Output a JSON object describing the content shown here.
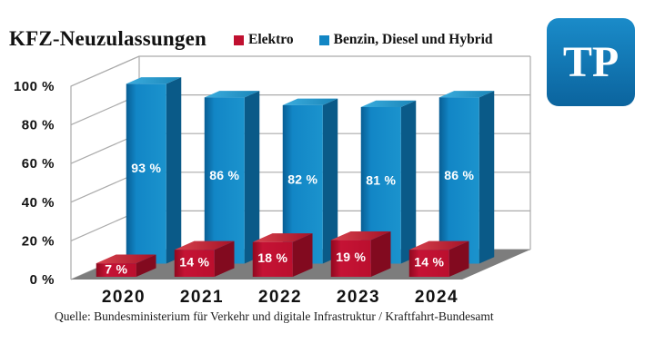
{
  "header": {
    "title": "KFZ-Neuzulassungen",
    "logo_text": "TP",
    "logo_color_top": "#1a8bc9",
    "logo_color_bottom": "#0b649e"
  },
  "source": "Quelle: Bundesministerium für Verkehr und digitale Infrastruktur / Kraftfahrt-Bundesamt",
  "chart_data": {
    "type": "bar",
    "style": "3d-column",
    "title": "KFZ-Neuzulassungen",
    "categories": [
      "2020",
      "2021",
      "2022",
      "2023",
      "2024"
    ],
    "series": [
      {
        "name": "Elektro",
        "color": "#c01030",
        "values": [
          7,
          14,
          18,
          19,
          14
        ],
        "colors": {
          "front_start": "#90081f",
          "front_mid": "#c51335",
          "front_end": "#bb0f2e",
          "top_start": "#d8434e",
          "top_end": "#a51126",
          "side": "#820a1f"
        }
      },
      {
        "name": "Benzin, Diesel und Hybrid",
        "color": "#1286c4",
        "values": [
          93,
          86,
          82,
          81,
          86
        ],
        "colors": {
          "front_start": "#085e94",
          "front_mid": "#1286c6",
          "front_end": "#1b93cd",
          "top_start": "#3badde",
          "top_end": "#1a85b8",
          "side": "#0a5a88"
        }
      }
    ],
    "value_suffix": " %",
    "yticks": [
      {
        "label": "0 %",
        "pct": 0
      },
      {
        "label": "20 %",
        "pct": 20
      },
      {
        "label": "40 %",
        "pct": 40
      },
      {
        "label": "60 %",
        "pct": 60
      },
      {
        "label": "80 %",
        "pct": 80
      },
      {
        "label": "100 %",
        "pct": 100
      }
    ],
    "ylim": [
      0,
      100
    ],
    "grid": true,
    "grid_color": "#ababab",
    "floor_color": "#7d7d7d",
    "legend_position": "top"
  }
}
